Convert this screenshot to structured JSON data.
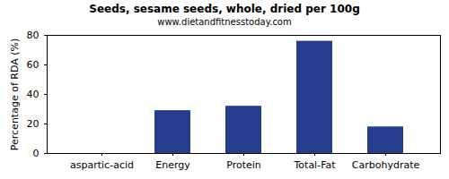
{
  "chart_data": {
    "type": "bar",
    "title": "Seeds, sesame seeds, whole, dried per 100g",
    "subtitle": "www.dietandfitnesstoday.com",
    "y_label": "Percentage of RDA (%)",
    "categories": [
      "aspartic-acid",
      "Energy",
      "Protein",
      "Total-Fat",
      "Carbohydrate"
    ],
    "values": [
      0,
      29,
      32,
      76,
      18
    ],
    "color": "#253d8c",
    "ylim": [
      0,
      80
    ],
    "yticks": [
      0,
      20,
      40,
      60,
      80
    ],
    "grid": false
  }
}
